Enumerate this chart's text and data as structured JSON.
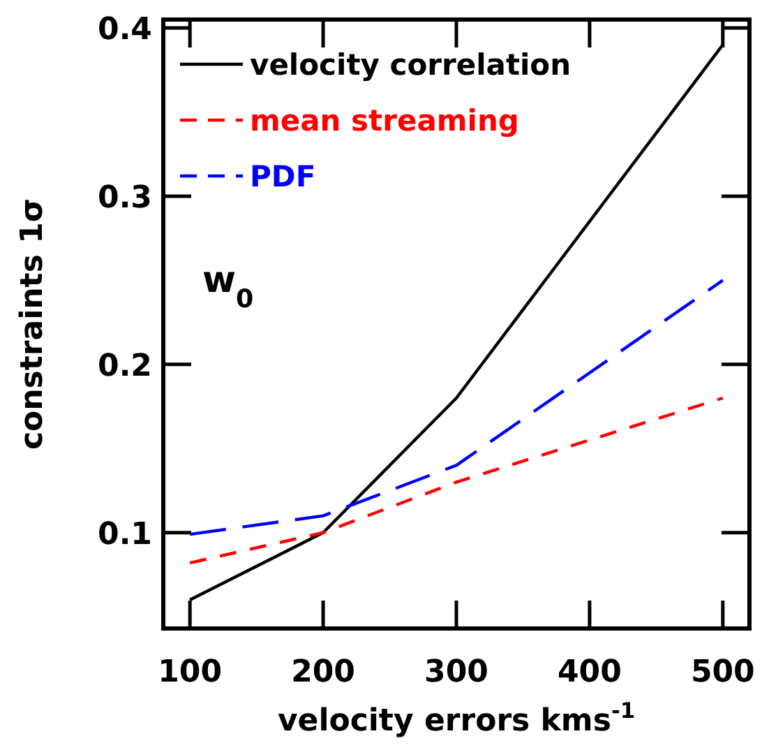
{
  "chart_data": {
    "type": "line",
    "xlabel": "velocity errors kms$^{-1}$",
    "ylabel": "constraints 1σ",
    "annotations": [
      "w$_{0}$"
    ],
    "x": [
      100,
      200,
      300,
      500
    ],
    "series": [
      {
        "name": "velocity correlation",
        "color": "#000000",
        "line_style": "solid",
        "values": [
          0.06,
          0.1,
          0.18,
          0.39
        ]
      },
      {
        "name": "mean streaming",
        "color": "#ff0000",
        "line_style": "dashed",
        "values": [
          0.082,
          0.1,
          0.13,
          0.18
        ]
      },
      {
        "name": "PDF",
        "color": "#0000ff",
        "line_style": "dashed",
        "values": [
          0.099,
          0.11,
          0.14,
          0.25
        ]
      }
    ],
    "xlim": [
      80,
      520
    ],
    "ylim": [
      0.043,
      0.405
    ],
    "xticks": [
      100,
      200,
      300,
      400,
      500
    ],
    "yticks": [
      0.1,
      0.2,
      0.3,
      0.4
    ],
    "grid": false,
    "legend": "top left",
    "marker": "none"
  }
}
